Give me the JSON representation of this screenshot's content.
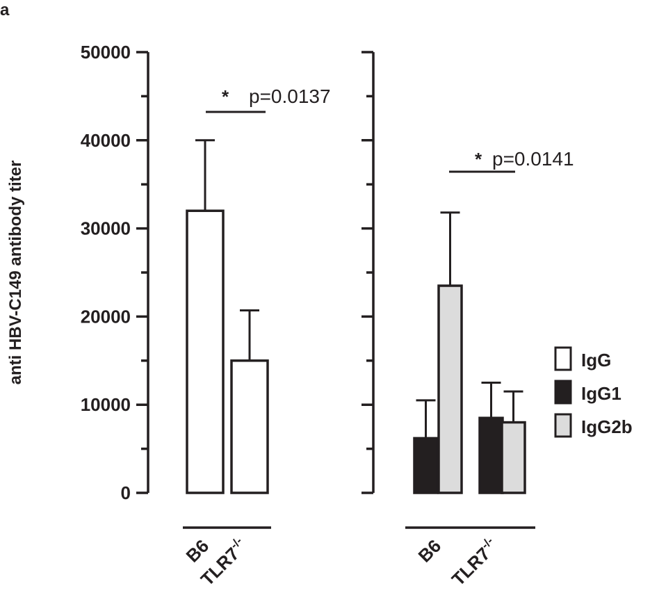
{
  "panel_label": "a",
  "chart_data": {
    "type": "bar",
    "ylabel": "anti HBV-C149 antibody titer",
    "ylim": [
      0,
      50000
    ],
    "yticks": [
      "0",
      "10000",
      "20000",
      "30000",
      "40000",
      "50000"
    ],
    "grid": false,
    "legend": {
      "placement": "right",
      "entries": [
        {
          "label": "IgG",
          "color": "#ffffff"
        },
        {
          "label": "IgG1",
          "color": "#231f20"
        },
        {
          "label": "IgG2b",
          "color": "#dcdcdc"
        }
      ]
    },
    "panels": [
      {
        "group_labels": [
          "B6",
          "TLR7"
        ],
        "superscript": "-/-",
        "series": [
          {
            "series": "IgG",
            "values": [
              32000,
              15000
            ],
            "errors": [
              8000,
              5700
            ]
          }
        ],
        "annotation": {
          "star": "*",
          "text": "p=0.0137"
        }
      },
      {
        "group_labels": [
          "B6",
          "TLR7"
        ],
        "superscript": "-/-",
        "series": [
          {
            "series": "IgG1",
            "values": [
              6200,
              8500
            ],
            "errors": [
              4300,
              4000
            ]
          },
          {
            "series": "IgG2b",
            "values": [
              23500,
              8000
            ],
            "errors": [
              8300,
              3500
            ]
          }
        ],
        "annotation": {
          "star": "*",
          "text": "p=0.0141"
        }
      }
    ]
  }
}
